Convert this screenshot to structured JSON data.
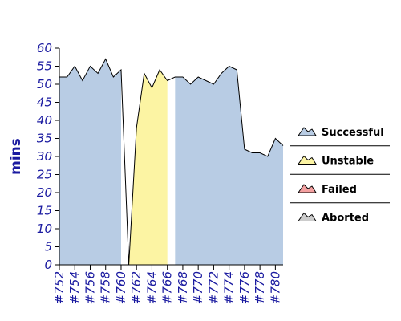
{
  "chart_data": {
    "type": "area",
    "ylabel": "mins",
    "xlabel": "",
    "ylim": [
      0,
      60
    ],
    "yticks": [
      0,
      5,
      10,
      15,
      20,
      25,
      30,
      35,
      40,
      45,
      50,
      55,
      60
    ],
    "x": [
      "#752",
      "#753",
      "#754",
      "#755",
      "#756",
      "#757",
      "#758",
      "#759",
      "#760",
      "#761",
      "#762",
      "#763",
      "#764",
      "#765",
      "#766",
      "#767",
      "#768",
      "#769",
      "#770",
      "#771",
      "#772",
      "#773",
      "#774",
      "#775",
      "#776",
      "#777",
      "#778",
      "#779",
      "#780",
      "#781"
    ],
    "x_tick_labels": [
      "#752",
      "#754",
      "#756",
      "#758",
      "#760",
      "#762",
      "#764",
      "#766",
      "#768",
      "#770",
      "#772",
      "#774",
      "#776",
      "#778",
      "#780"
    ],
    "values": [
      52,
      52,
      55,
      51,
      55,
      53,
      57,
      52,
      54,
      0,
      38,
      53,
      49,
      54,
      51,
      52,
      52,
      50,
      52,
      51,
      50,
      53,
      55,
      54,
      32,
      31,
      31,
      30,
      35,
      33
    ],
    "status": [
      "Successful",
      "Successful",
      "Successful",
      "Successful",
      "Successful",
      "Successful",
      "Successful",
      "Successful",
      "Successful",
      "Unstable",
      "Unstable",
      "Unstable",
      "Unstable",
      "Unstable",
      "Unstable",
      "Successful",
      "Successful",
      "Successful",
      "Successful",
      "Successful",
      "Successful",
      "Successful",
      "Successful",
      "Successful",
      "Successful",
      "Successful",
      "Successful",
      "Successful",
      "Successful",
      "Successful"
    ],
    "legend": {
      "placement": "right",
      "entries": [
        {
          "name": "Successful",
          "color": "#b8cce4"
        },
        {
          "name": "Unstable",
          "color": "#fcf4a3"
        },
        {
          "name": "Failed",
          "color": "#f4a0a0"
        },
        {
          "name": "Aborted",
          "color": "#cccccc"
        }
      ]
    },
    "grid": false
  }
}
